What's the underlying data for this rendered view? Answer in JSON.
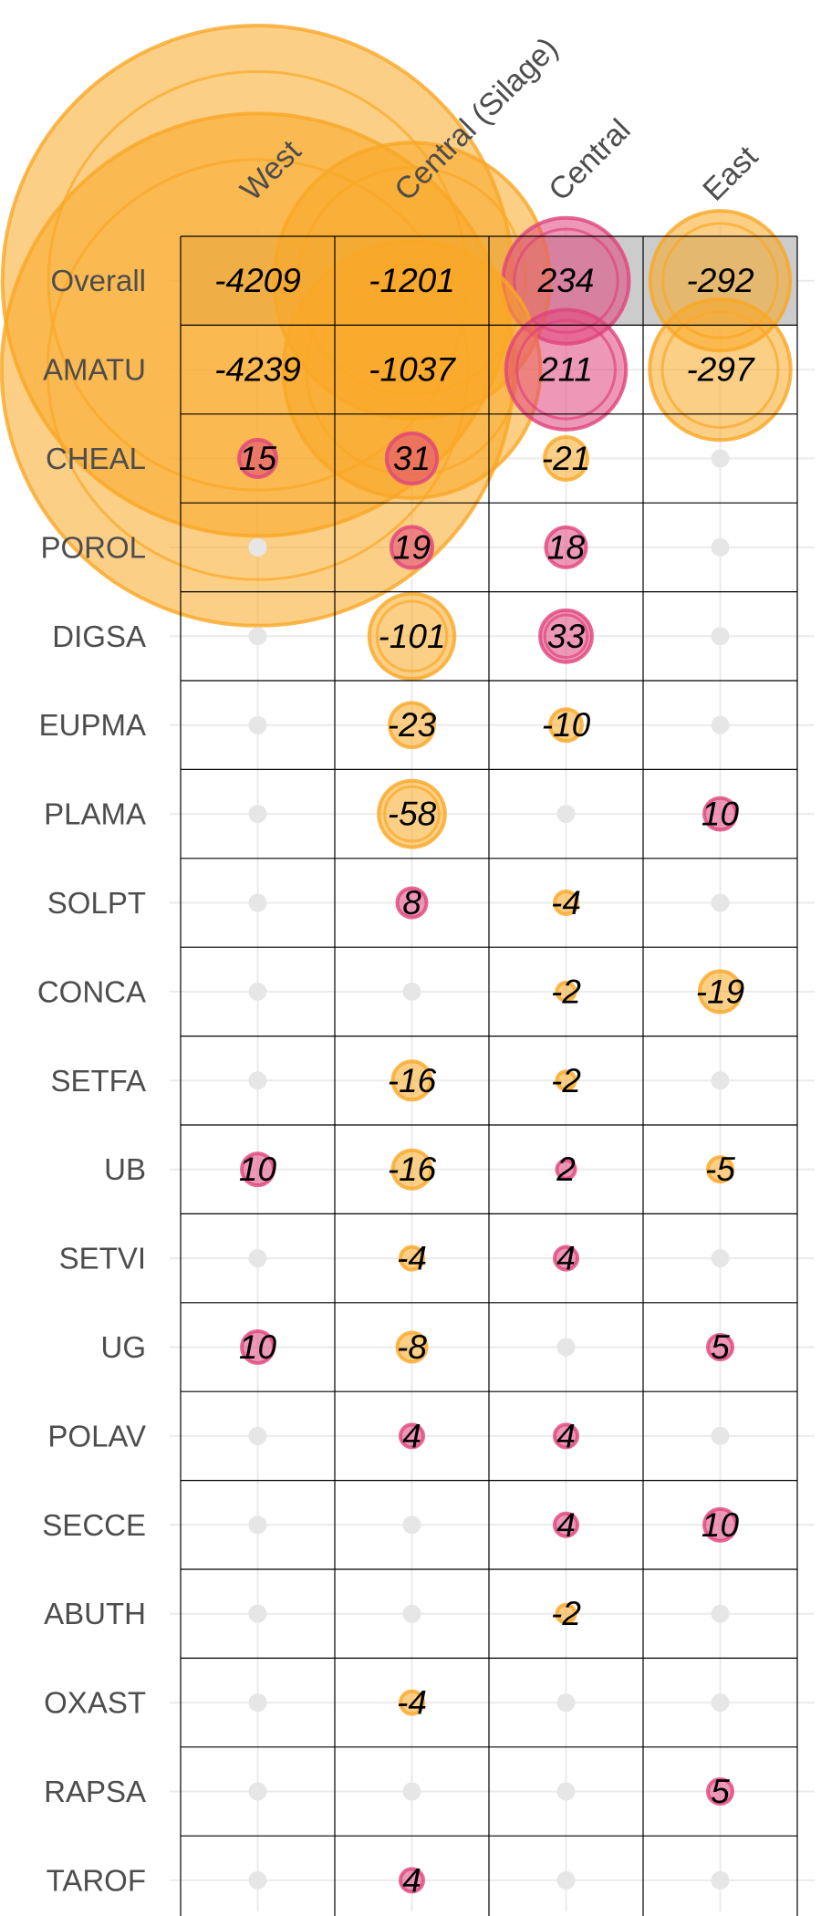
{
  "chart_data": {
    "type": "table",
    "columns": [
      "West",
      "Central (Silage)",
      "Central",
      "East"
    ],
    "rows": [
      {
        "name": "Overall",
        "values": [
          -4209,
          -1201,
          234,
          -292
        ]
      },
      {
        "name": "AMATU",
        "values": [
          -4239,
          -1037,
          211,
          -297
        ]
      },
      {
        "name": "CHEAL",
        "values": [
          15,
          31,
          -21,
          null
        ]
      },
      {
        "name": "POROL",
        "values": [
          null,
          19,
          18,
          null
        ]
      },
      {
        "name": "DIGSA",
        "values": [
          null,
          -101,
          33,
          null
        ]
      },
      {
        "name": "EUPMA",
        "values": [
          null,
          -23,
          -10,
          null
        ]
      },
      {
        "name": "PLAMA",
        "values": [
          null,
          -58,
          null,
          10
        ]
      },
      {
        "name": "SOLPT",
        "values": [
          null,
          8,
          -4,
          null
        ]
      },
      {
        "name": "CONCA",
        "values": [
          null,
          null,
          -2,
          -19
        ]
      },
      {
        "name": "SETFA",
        "values": [
          null,
          -16,
          -2,
          null
        ]
      },
      {
        "name": "UB",
        "values": [
          10,
          -16,
          2,
          -5
        ]
      },
      {
        "name": "SETVI",
        "values": [
          null,
          -4,
          4,
          null
        ]
      },
      {
        "name": "UG",
        "values": [
          10,
          -8,
          null,
          5
        ]
      },
      {
        "name": "POLAV",
        "values": [
          null,
          4,
          4,
          null
        ]
      },
      {
        "name": "SECCE",
        "values": [
          null,
          null,
          4,
          10
        ]
      },
      {
        "name": "ABUTH",
        "values": [
          null,
          null,
          -2,
          null
        ]
      },
      {
        "name": "OXAST",
        "values": [
          null,
          -4,
          null,
          null
        ]
      },
      {
        "name": "RAPSA",
        "values": [
          null,
          null,
          null,
          5
        ]
      },
      {
        "name": "TAROF",
        "values": [
          null,
          4,
          null,
          null
        ]
      }
    ],
    "highlight_row": "Overall",
    "colors": {
      "negative": "#f9a825",
      "positive": "#e0447c",
      "empty_dot": "#e6e6e6",
      "highlight_fill": "#cccccc",
      "grid": "#ebebeb"
    }
  }
}
